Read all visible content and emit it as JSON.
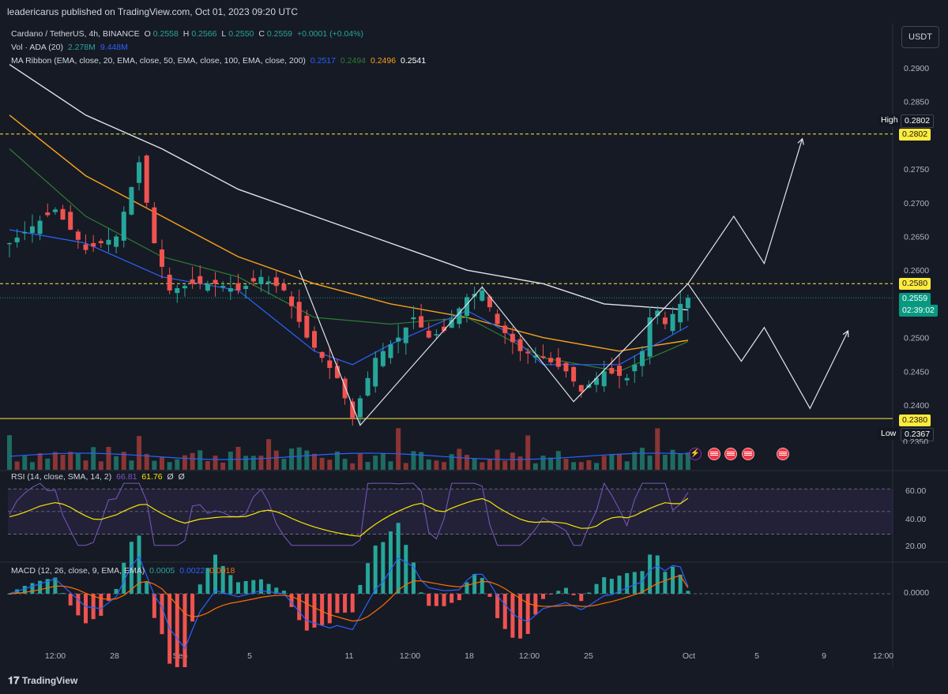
{
  "header": {
    "publisher": "leadericarus published on TradingView.com, Oct 01, 2023 09:20 UTC"
  },
  "legend": {
    "symbol": "Cardano / TetherUS, 4h, BINANCE",
    "o_label": "O",
    "o": "0.2558",
    "h_label": "H",
    "h": "0.2566",
    "l_label": "L",
    "l": "0.2550",
    "c_label": "C",
    "c": "0.2559",
    "change": "+0.0001 (+0.04%)",
    "vol_label": "Vol · ADA (20)",
    "vol1": "2.278M",
    "vol2": "9.448M",
    "ma_label": "MA Ribbon (EMA, close, 20, EMA, close, 50, EMA, close, 100, EMA, close, 200)",
    "ma20": "0.2517",
    "ma50": "0.2494",
    "ma100": "0.2496",
    "ma200": "0.2541",
    "rsi_label": "RSI (14, close, SMA, 14, 2)",
    "rsi1": "66.81",
    "rsi2": "61.76",
    "rsi3": "Ø",
    "rsi4": "Ø",
    "macd_label": "MACD (12, 26, close, 9, EMA, EMA)",
    "macd1": "0.0005",
    "macd2": "0.0022",
    "macd3": "0.0018"
  },
  "currency_button": "USDT",
  "price_labels": {
    "high_label": "High",
    "high": "0.2802",
    "level_2802": "0.2802",
    "level_2580": "0.2580",
    "last": "0.2559",
    "countdown": "02:39:02",
    "level_2380": "0.2380",
    "low_label": "Low",
    "low": "0.2367",
    "partial": "0.2350"
  },
  "rsi_axis": [
    "60.00",
    "40.00",
    "20.00"
  ],
  "macd_axis": [
    "0.0000"
  ],
  "footer": {
    "brand": "TradingView"
  },
  "colors": {
    "up": "#26a69a",
    "down": "#ef5350",
    "ema20": "#2962ff",
    "ema50": "#1b5e20",
    "ema100": "#f7a21b",
    "ema200": "#e0e3eb",
    "levels": "#ffeb3b",
    "rsi": "#7e57c2"
  },
  "chart_data": {
    "type": "candlestick",
    "title": "Cardano / TetherUS, 4h, BINANCE",
    "ylim": [
      0.235,
      0.29
    ],
    "y_ticks": [
      "0.2900",
      "0.2850",
      "0.2800",
      "0.2750",
      "0.2700",
      "0.2650",
      "0.2600",
      "0.2550",
      "0.2500",
      "0.2450",
      "0.2400"
    ],
    "x_ticks": [
      "12:00",
      "28",
      "Sep",
      "5",
      "11",
      "12:00",
      "18",
      "12:00",
      "25",
      "Oct",
      "5",
      "9",
      "12:00"
    ],
    "horizontal_levels": [
      0.2802,
      0.258,
      0.238
    ],
    "price_path": [
      [
        0,
        0.264
      ],
      [
        6,
        0.269
      ],
      [
        10,
        0.263
      ],
      [
        14,
        0.265
      ],
      [
        17,
        0.276
      ],
      [
        19,
        0.264
      ],
      [
        21,
        0.257
      ],
      [
        24,
        0.258
      ],
      [
        27,
        0.258
      ],
      [
        30,
        0.257
      ],
      [
        33,
        0.259
      ],
      [
        36,
        0.257
      ],
      [
        39,
        0.25
      ],
      [
        43,
        0.244
      ],
      [
        45,
        0.238
      ],
      [
        48,
        0.247
      ],
      [
        51,
        0.25
      ],
      [
        53,
        0.253
      ],
      [
        55,
        0.25
      ],
      [
        57,
        0.251
      ],
      [
        60,
        0.256
      ],
      [
        62,
        0.257
      ],
      [
        64,
        0.252
      ],
      [
        67,
        0.248
      ],
      [
        70,
        0.247
      ],
      [
        73,
        0.245
      ],
      [
        75,
        0.242
      ],
      [
        78,
        0.245
      ],
      [
        81,
        0.244
      ],
      [
        83,
        0.248
      ],
      [
        84,
        0.253
      ],
      [
        85,
        0.254
      ],
      [
        86,
        0.252
      ],
      [
        88,
        0.255
      ],
      [
        89,
        0.2559
      ]
    ],
    "ema200_path": [
      [
        0,
        0.2905
      ],
      [
        10,
        0.283
      ],
      [
        20,
        0.278
      ],
      [
        30,
        0.272
      ],
      [
        40,
        0.268
      ],
      [
        50,
        0.264
      ],
      [
        60,
        0.26
      ],
      [
        70,
        0.258
      ],
      [
        78,
        0.255
      ],
      [
        89,
        0.2541
      ]
    ],
    "ema100_path": [
      [
        0,
        0.283
      ],
      [
        10,
        0.274
      ],
      [
        20,
        0.268
      ],
      [
        30,
        0.262
      ],
      [
        40,
        0.258
      ],
      [
        50,
        0.255
      ],
      [
        60,
        0.253
      ],
      [
        70,
        0.25
      ],
      [
        80,
        0.248
      ],
      [
        89,
        0.2496
      ]
    ],
    "ema50_path": [
      [
        0,
        0.278
      ],
      [
        10,
        0.268
      ],
      [
        20,
        0.262
      ],
      [
        30,
        0.259
      ],
      [
        40,
        0.253
      ],
      [
        50,
        0.252
      ],
      [
        60,
        0.253
      ],
      [
        70,
        0.247
      ],
      [
        80,
        0.245
      ],
      [
        89,
        0.2494
      ]
    ],
    "ema20_path": [
      [
        0,
        0.266
      ],
      [
        10,
        0.264
      ],
      [
        20,
        0.259
      ],
      [
        30,
        0.257
      ],
      [
        40,
        0.248
      ],
      [
        45,
        0.246
      ],
      [
        50,
        0.249
      ],
      [
        60,
        0.254
      ],
      [
        65,
        0.251
      ],
      [
        70,
        0.246
      ],
      [
        80,
        0.246
      ],
      [
        89,
        0.2517
      ]
    ],
    "projection_paths": [
      [
        [
          38,
          0.26
        ],
        [
          46,
          0.237
        ],
        [
          62,
          0.2575
        ],
        [
          74,
          0.2405
        ],
        [
          89,
          0.258
        ],
        [
          95,
          0.268
        ],
        [
          99,
          0.261
        ],
        [
          104,
          0.2795
        ]
      ],
      [
        [
          89,
          0.258
        ],
        [
          96,
          0.2465
        ],
        [
          99,
          0.2515
        ],
        [
          105,
          0.2395
        ],
        [
          110,
          0.251
        ]
      ]
    ],
    "rsi_series_label": "RSI 14",
    "rsi_levels": [
      70,
      50,
      30
    ],
    "rsi_last": 66.81,
    "rsi_sma_last": 61.76,
    "macd_last": 0.0005,
    "macd_line_last": 0.0022,
    "signal_last": 0.0018
  }
}
